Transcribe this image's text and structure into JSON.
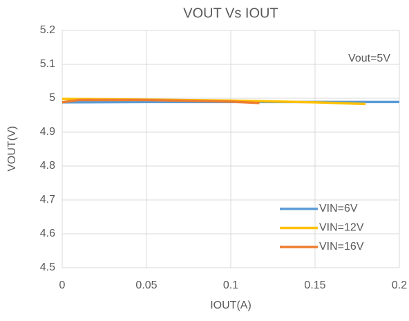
{
  "chart_data": {
    "type": "line",
    "title": "VOUT Vs IOUT",
    "xlabel": "IOUT(A)",
    "ylabel": "VOUT(V)",
    "annotation": "Vout=5V",
    "xlim": [
      0,
      0.2
    ],
    "xticks": [
      0,
      0.05,
      0.1,
      0.15,
      0.2
    ],
    "ylim": [
      4.5,
      5.2
    ],
    "yticks": [
      4.5,
      4.6,
      4.7,
      4.8,
      4.9,
      5,
      5.1,
      5.2
    ],
    "grid": true,
    "legend": "lower right",
    "series": [
      {
        "name": "VIN=6V",
        "color": "#5b9bd5",
        "x": [
          0,
          0.05,
          0.1,
          0.15,
          0.2
        ],
        "values": [
          4.988,
          4.989,
          4.989,
          4.989,
          4.989
        ]
      },
      {
        "name": "VIN=12V",
        "color": "#ffc000",
        "x": [
          0,
          0.05,
          0.1,
          0.15,
          0.18
        ],
        "values": [
          4.998,
          4.996,
          4.993,
          4.988,
          4.983
        ]
      },
      {
        "name": "VIN=16V",
        "color": "#ed7d31",
        "x": [
          0,
          0.01,
          0.05,
          0.1,
          0.117
        ],
        "values": [
          4.988,
          4.995,
          4.995,
          4.99,
          4.986
        ]
      }
    ]
  }
}
